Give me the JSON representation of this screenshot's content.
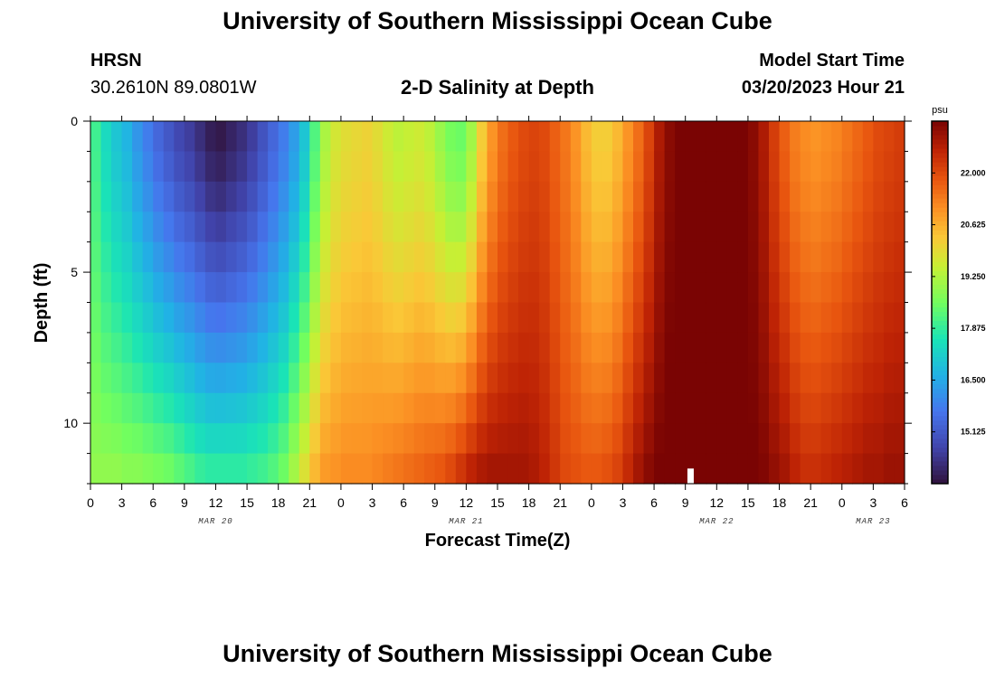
{
  "header": {
    "title": "University of Southern Mississippi Ocean Cube",
    "station": "HRSN",
    "coords": "30.2610N  89.0801W",
    "subtitle": "2-D Salinity at Depth",
    "start_label": "Model Start Time",
    "start_value": "03/20/2023 Hour 21"
  },
  "footer": {
    "title": "University of Southern Mississippi Ocean Cube"
  },
  "chart_data": {
    "type": "heatmap",
    "title": "2-D Salinity at Depth",
    "xlabel": "Forecast Time(Z)",
    "ylabel": "Depth (ft)",
    "x_unit": "hours since MAR 20 00Z",
    "x_range": [
      0,
      78
    ],
    "y_range": [
      0,
      12
    ],
    "x_ticks": [
      {
        "h": 0,
        "label": "0"
      },
      {
        "h": 3,
        "label": "3"
      },
      {
        "h": 6,
        "label": "6"
      },
      {
        "h": 9,
        "label": "9"
      },
      {
        "h": 12,
        "label": "12"
      },
      {
        "h": 15,
        "label": "15"
      },
      {
        "h": 18,
        "label": "18"
      },
      {
        "h": 21,
        "label": "21"
      },
      {
        "h": 24,
        "label": "0"
      },
      {
        "h": 27,
        "label": "3"
      },
      {
        "h": 30,
        "label": "6"
      },
      {
        "h": 33,
        "label": "9"
      },
      {
        "h": 36,
        "label": "12"
      },
      {
        "h": 39,
        "label": "15"
      },
      {
        "h": 42,
        "label": "18"
      },
      {
        "h": 45,
        "label": "21"
      },
      {
        "h": 48,
        "label": "0"
      },
      {
        "h": 51,
        "label": "3"
      },
      {
        "h": 54,
        "label": "6"
      },
      {
        "h": 57,
        "label": "9"
      },
      {
        "h": 60,
        "label": "12"
      },
      {
        "h": 63,
        "label": "15"
      },
      {
        "h": 66,
        "label": "18"
      },
      {
        "h": 69,
        "label": "21"
      },
      {
        "h": 72,
        "label": "0"
      },
      {
        "h": 75,
        "label": "3"
      },
      {
        "h": 78,
        "label": "6"
      }
    ],
    "date_labels": [
      {
        "h": 12,
        "label": "MAR 20"
      },
      {
        "h": 36,
        "label": "MAR 21"
      },
      {
        "h": 60,
        "label": "MAR 22"
      },
      {
        "h": 75,
        "label": "MAR 23"
      }
    ],
    "y_ticks": [
      {
        "ft": 0,
        "label": "0"
      },
      {
        "ft": 5,
        "label": "5"
      },
      {
        "ft": 10,
        "label": "10"
      }
    ],
    "colorbar": {
      "unit": "psu",
      "range": [
        13.75,
        23.375
      ],
      "ticks": [
        15.125,
        16.5,
        17.875,
        19.25,
        20.625,
        22.0
      ],
      "tick_labels": [
        "15.125",
        "16.500",
        "17.875",
        "19.250",
        "20.625",
        "22.000"
      ]
    },
    "depth_levels_ft": [
      0.25,
      1.25,
      2.25,
      3.25,
      4.25,
      5.25,
      6.25,
      7.25,
      8.25,
      9.25,
      10.25,
      11.25
    ],
    "time_step_hours": 1,
    "surface_salinity_psu": [
      18.0,
      17.4,
      17.0,
      16.7,
      16.2,
      15.8,
      15.4,
      15.1,
      14.8,
      14.6,
      14.3,
      14.0,
      13.9,
      14.1,
      14.3,
      14.6,
      15.0,
      15.4,
      15.8,
      16.3,
      17.0,
      18.2,
      19.2,
      19.7,
      19.9,
      20.0,
      20.1,
      19.9,
      19.6,
      19.4,
      19.5,
      19.6,
      19.4,
      19.0,
      18.6,
      18.5,
      19.1,
      20.2,
      21.0,
      21.5,
      21.8,
      22.0,
      22.1,
      22.0,
      21.7,
      21.4,
      21.0,
      20.5,
      20.2,
      20.2,
      20.5,
      21.0,
      21.5,
      22.1,
      22.8,
      23.2,
      23.4,
      23.5,
      23.5,
      23.5,
      23.5,
      23.5,
      23.4,
      23.2,
      22.8,
      22.2,
      21.7,
      21.3,
      21.1,
      21.0,
      21.1,
      21.2,
      21.4,
      21.6,
      21.8,
      22.0,
      22.1,
      22.2
    ],
    "bottom_salinity_psu": [
      18.9,
      18.9,
      18.9,
      18.8,
      18.8,
      18.7,
      18.6,
      18.5,
      18.3,
      18.1,
      17.9,
      17.8,
      17.8,
      17.8,
      17.8,
      17.9,
      18.0,
      18.2,
      18.5,
      19.1,
      19.8,
      20.5,
      20.9,
      21.0,
      21.1,
      21.1,
      21.1,
      21.2,
      21.3,
      21.4,
      21.5,
      21.6,
      21.7,
      21.8,
      22.0,
      22.3,
      22.6,
      22.8,
      22.9,
      22.9,
      22.9,
      22.9,
      22.8,
      22.6,
      22.3,
      22.0,
      21.9,
      21.8,
      21.8,
      21.9,
      22.1,
      22.5,
      22.9,
      23.2,
      23.4,
      23.5,
      23.5,
      23.5,
      23.5,
      23.5,
      23.5,
      23.5,
      23.5,
      23.4,
      23.3,
      23.1,
      22.9,
      22.6,
      22.4,
      22.4,
      22.5,
      22.6,
      22.7,
      22.8,
      22.9,
      22.9,
      23.0,
      23.0
    ],
    "gap_marker": {
      "h": 57.5,
      "depth_ft": [
        11.5,
        12
      ],
      "color": "#ffffff"
    }
  }
}
